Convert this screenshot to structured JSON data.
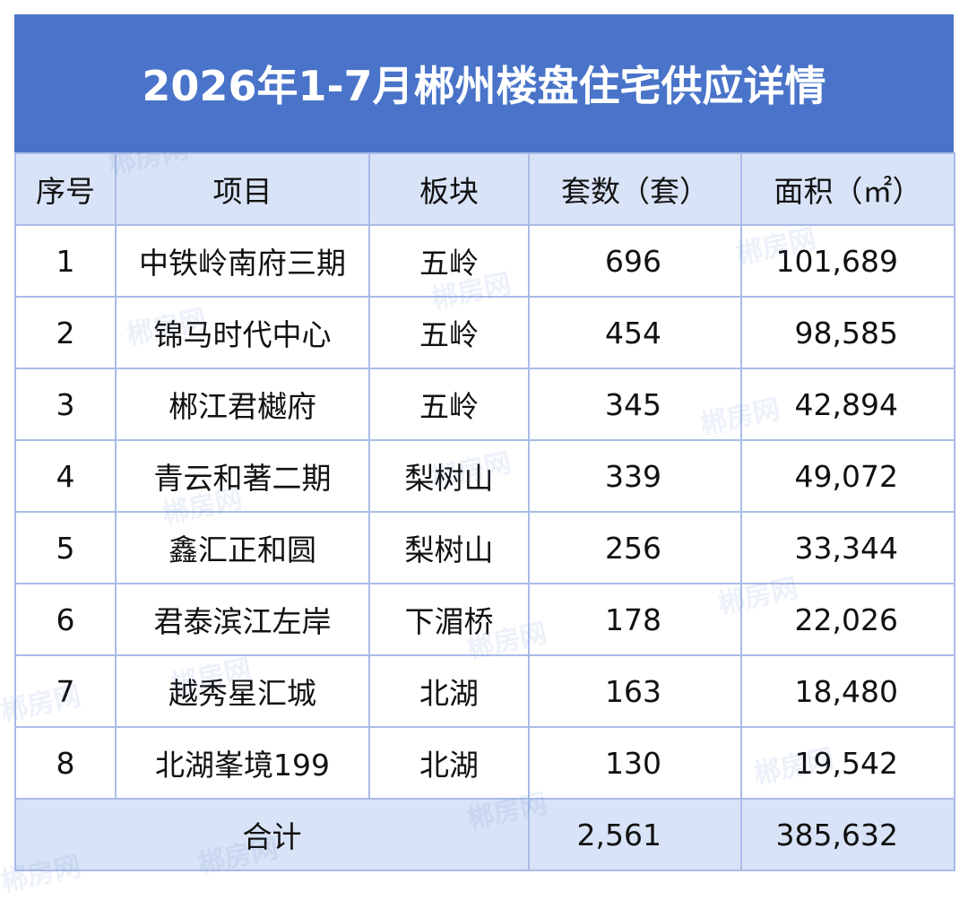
{
  "title": "2026年1-7月郴州楼盘住宅供应详情",
  "table": {
    "header": [
      "序号",
      "项目",
      "板块",
      "套数（套）",
      "面积（㎡）"
    ],
    "rows": [
      [
        "1",
        "中铁岭南府三期",
        "五岭",
        "696",
        "101,689"
      ],
      [
        "2",
        "锦马时代中心",
        "五岭",
        "454",
        "98,585"
      ],
      [
        "3",
        "郴江君樾府",
        "五岭",
        "345",
        "42,894"
      ],
      [
        "4",
        "青云和著二期",
        "梨树山",
        "339",
        "49,072"
      ],
      [
        "5",
        "鑫汇正和圆",
        "梨树山",
        "256",
        "33,344"
      ],
      [
        "6",
        "君泰滨江左岸",
        "下湄桥",
        "178",
        "22,026"
      ],
      [
        "7",
        "越秀星汇城",
        "北湖",
        "163",
        "18,480"
      ],
      [
        "8",
        "北湖峯境199",
        "北湖",
        "130",
        "19,542"
      ]
    ],
    "total": [
      "合计",
      "2,561",
      "385,632"
    ]
  },
  "watermark": "郴房网"
}
